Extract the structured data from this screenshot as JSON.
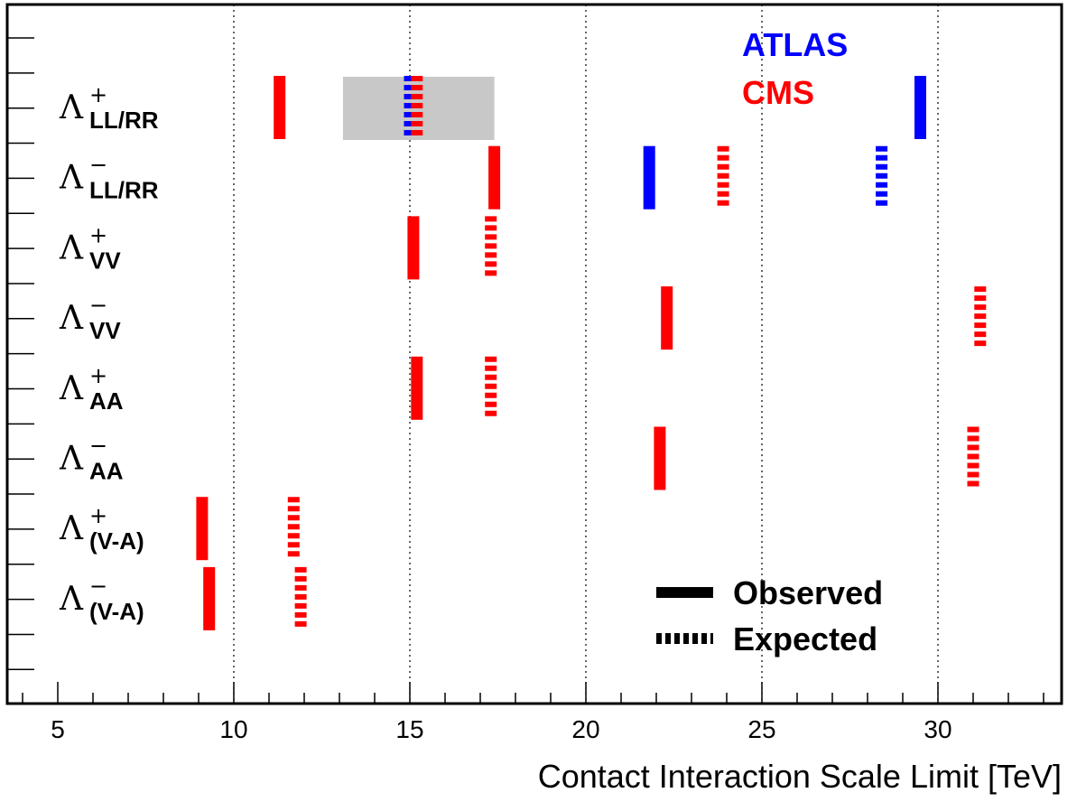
{
  "chart_data": {
    "type": "range-bar",
    "xlabel": "Contact Interaction Scale Limit [TeV]",
    "xlim": [
      4,
      33.5
    ],
    "x_ticks": [
      "5",
      "10",
      "15",
      "20",
      "25",
      "30"
    ],
    "grid": "vertical dotted at 10, 15, 20, 25, 30",
    "experiments": [
      {
        "name": "ATLAS",
        "color": "#0000ff"
      },
      {
        "name": "CMS",
        "color": "#ff0000"
      }
    ],
    "legend": {
      "observed_label": "Observed",
      "expected_label": "Expected"
    },
    "categories": [
      {
        "symbol": "Λ",
        "sup": "+",
        "sub": "LL/RR"
      },
      {
        "symbol": "Λ",
        "sup": "−",
        "sub": "LL/RR"
      },
      {
        "symbol": "Λ",
        "sup": "+",
        "sub": "VV"
      },
      {
        "symbol": "Λ",
        "sup": "−",
        "sub": "VV"
      },
      {
        "symbol": "Λ",
        "sup": "+",
        "sub": "AA"
      },
      {
        "symbol": "Λ",
        "sup": "−",
        "sub": "AA"
      },
      {
        "symbol": "Λ",
        "sup": "+",
        "sub": "(V-A)"
      },
      {
        "symbol": "Λ",
        "sup": "−",
        "sub": "(V-A)"
      }
    ],
    "band": {
      "category": 0,
      "x_range": [
        13.1,
        17.4
      ],
      "color": "#c8c8c8"
    },
    "marks": [
      {
        "category": 0,
        "experiment": "CMS",
        "kind": "observed",
        "value": 11.3
      },
      {
        "category": 0,
        "experiment": "ATLAS",
        "kind": "expected",
        "value": 15.0
      },
      {
        "category": 0,
        "experiment": "CMS",
        "kind": "expected",
        "value": 15.2
      },
      {
        "category": 0,
        "experiment": "ATLAS",
        "kind": "observed",
        "value": 29.5
      },
      {
        "category": 1,
        "experiment": "CMS",
        "kind": "observed",
        "value": 17.4
      },
      {
        "category": 1,
        "experiment": "ATLAS",
        "kind": "observed",
        "value": 21.8
      },
      {
        "category": 1,
        "experiment": "CMS",
        "kind": "expected",
        "value": 23.9
      },
      {
        "category": 1,
        "experiment": "ATLAS",
        "kind": "expected",
        "value": 28.4
      },
      {
        "category": 2,
        "experiment": "CMS",
        "kind": "observed",
        "value": 15.1
      },
      {
        "category": 2,
        "experiment": "CMS",
        "kind": "expected",
        "value": 17.3
      },
      {
        "category": 3,
        "experiment": "CMS",
        "kind": "observed",
        "value": 22.3
      },
      {
        "category": 3,
        "experiment": "CMS",
        "kind": "expected",
        "value": 31.2
      },
      {
        "category": 4,
        "experiment": "CMS",
        "kind": "observed",
        "value": 15.2
      },
      {
        "category": 4,
        "experiment": "CMS",
        "kind": "expected",
        "value": 17.3
      },
      {
        "category": 5,
        "experiment": "CMS",
        "kind": "observed",
        "value": 22.1
      },
      {
        "category": 5,
        "experiment": "CMS",
        "kind": "expected",
        "value": 31.0
      },
      {
        "category": 6,
        "experiment": "CMS",
        "kind": "observed",
        "value": 9.1
      },
      {
        "category": 6,
        "experiment": "CMS",
        "kind": "expected",
        "value": 11.7
      },
      {
        "category": 7,
        "experiment": "CMS",
        "kind": "observed",
        "value": 9.3
      },
      {
        "category": 7,
        "experiment": "CMS",
        "kind": "expected",
        "value": 11.9
      }
    ]
  }
}
